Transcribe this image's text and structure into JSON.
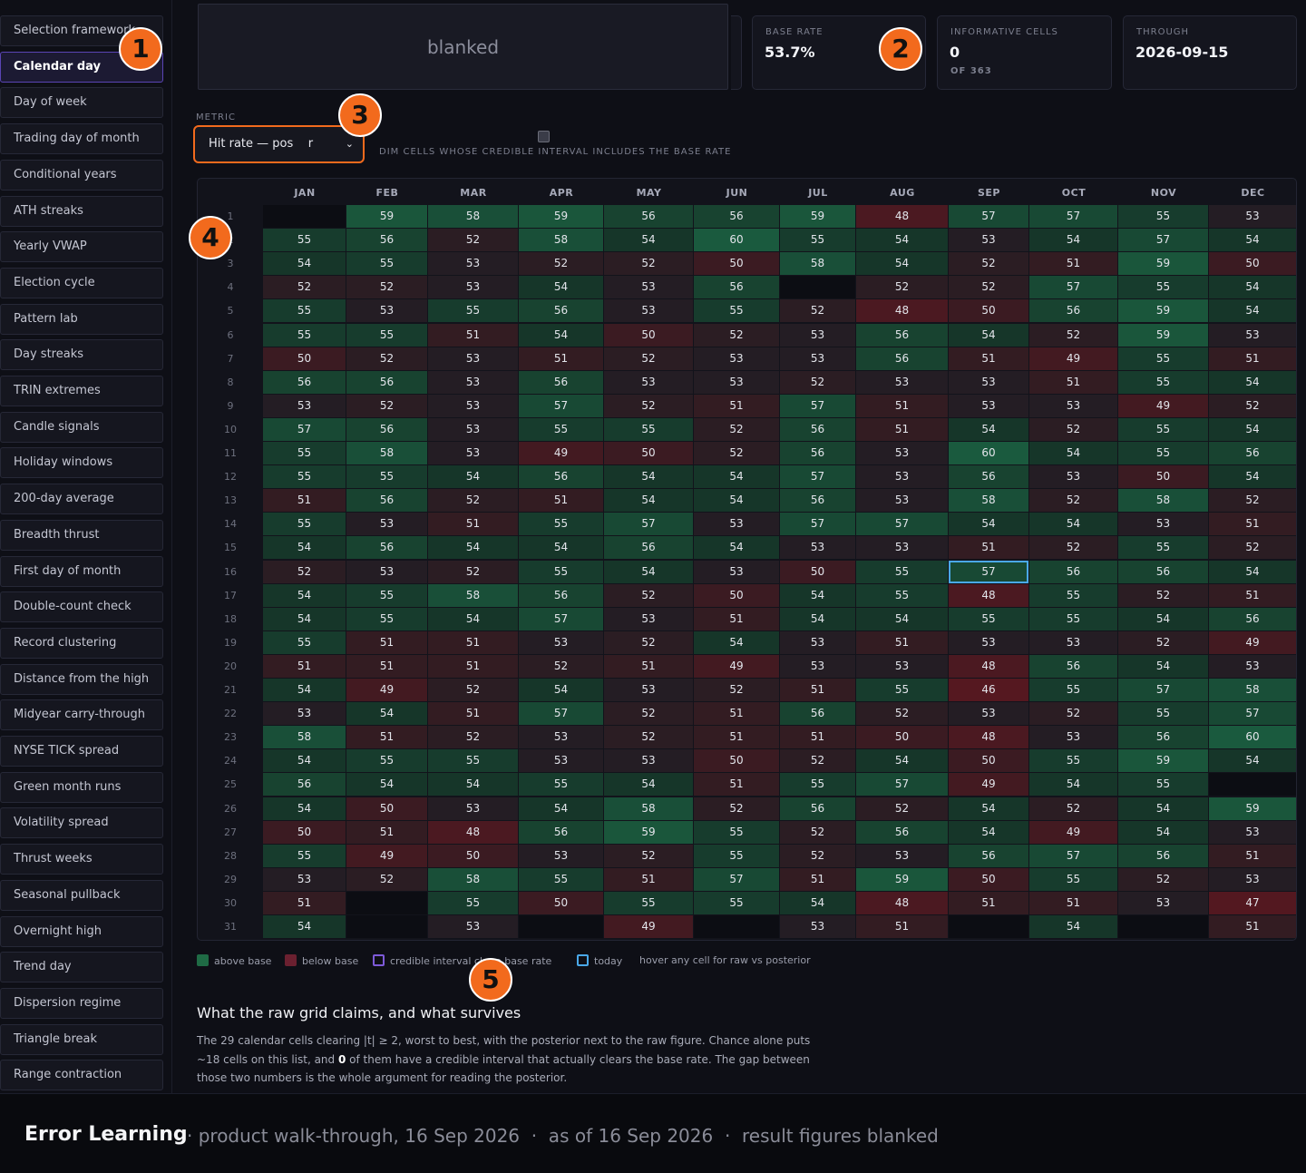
{
  "sidebar": {
    "items": [
      "Selection framework",
      "Calendar day",
      "Day of week",
      "Trading day of month",
      "Conditional years",
      "ATH streaks",
      "Yearly VWAP",
      "Election cycle",
      "Pattern lab",
      "Day streaks",
      "TRIN extremes",
      "Candle signals",
      "Holiday windows",
      "200-day average",
      "Breadth thrust",
      "First day of month",
      "Double-count check",
      "Record clustering",
      "Distance from the high",
      "Midyear carry-through",
      "NYSE TICK spread",
      "Green month runs",
      "Volatility spread",
      "Thrust weeks",
      "Seasonal pullback",
      "Overnight high",
      "Trend day",
      "Dispersion regime",
      "Triangle break",
      "Range contraction"
    ],
    "active_index": 1
  },
  "blank_panel": {
    "text": "blanked"
  },
  "kpis": {
    "base_rate": {
      "label": "BASE RATE",
      "value": "53.7%"
    },
    "informative": {
      "label": "INFORMATIVE CELLS",
      "value": "0",
      "sub": "OF 363"
    },
    "through": {
      "label": "THROUGH",
      "value": "2026-09-15"
    }
  },
  "badges": [
    "1",
    "2",
    "3",
    "4",
    "5"
  ],
  "metric": {
    "label": "METRIC",
    "value": "Hit rate — pos    r",
    "chevron": "⌄"
  },
  "dim_toggle": {
    "label": "DIM CELLS WHOSE CREDIBLE INTERVAL INCLUDES THE BASE RATE",
    "checked": false
  },
  "grid": {
    "months": [
      "JAN",
      "FEB",
      "MAR",
      "APR",
      "MAY",
      "JUN",
      "JUL",
      "AUG",
      "SEP",
      "OCT",
      "NOV",
      "DEC"
    ],
    "today": {
      "row": 15,
      "col": 8
    },
    "base": 53.7,
    "values": [
      [
        null,
        59,
        58,
        59,
        56,
        56,
        59,
        48,
        57,
        57,
        55,
        53
      ],
      [
        55,
        56,
        52,
        58,
        54,
        60,
        55,
        54,
        53,
        54,
        57,
        54
      ],
      [
        54,
        55,
        53,
        52,
        52,
        50,
        58,
        54,
        52,
        51,
        59,
        50
      ],
      [
        52,
        52,
        53,
        54,
        53,
        56,
        null,
        52,
        52,
        57,
        55,
        54
      ],
      [
        55,
        53,
        55,
        56,
        53,
        55,
        52,
        48,
        50,
        56,
        59,
        54
      ],
      [
        55,
        55,
        51,
        54,
        50,
        52,
        53,
        56,
        54,
        52,
        59,
        53
      ],
      [
        50,
        52,
        53,
        51,
        52,
        53,
        53,
        56,
        51,
        49,
        55,
        51
      ],
      [
        56,
        56,
        53,
        56,
        53,
        53,
        52,
        53,
        53,
        51,
        55,
        54
      ],
      [
        53,
        52,
        53,
        57,
        52,
        51,
        57,
        51,
        53,
        53,
        49,
        52
      ],
      [
        57,
        56,
        53,
        55,
        55,
        52,
        56,
        51,
        54,
        52,
        55,
        54
      ],
      [
        55,
        58,
        53,
        49,
        50,
        52,
        56,
        53,
        60,
        54,
        55,
        56
      ],
      [
        55,
        55,
        54,
        56,
        54,
        54,
        57,
        53,
        56,
        53,
        50,
        54
      ],
      [
        51,
        56,
        52,
        51,
        54,
        54,
        56,
        53,
        58,
        52,
        58,
        52
      ],
      [
        55,
        53,
        51,
        55,
        57,
        53,
        57,
        57,
        54,
        54,
        53,
        51
      ],
      [
        54,
        56,
        54,
        54,
        56,
        54,
        53,
        53,
        51,
        52,
        55,
        52
      ],
      [
        52,
        53,
        52,
        55,
        54,
        53,
        50,
        55,
        57,
        56,
        56,
        54
      ],
      [
        54,
        55,
        58,
        56,
        52,
        50,
        54,
        55,
        48,
        55,
        52,
        51
      ],
      [
        54,
        55,
        54,
        57,
        53,
        51,
        54,
        54,
        55,
        55,
        54,
        56
      ],
      [
        55,
        51,
        51,
        53,
        52,
        54,
        53,
        51,
        53,
        53,
        52,
        49
      ],
      [
        51,
        51,
        51,
        52,
        51,
        49,
        53,
        53,
        48,
        56,
        54,
        53
      ],
      [
        54,
        49,
        52,
        54,
        53,
        52,
        51,
        55,
        46,
        55,
        57,
        58
      ],
      [
        53,
        54,
        51,
        57,
        52,
        51,
        56,
        52,
        53,
        52,
        55,
        57
      ],
      [
        58,
        51,
        52,
        53,
        52,
        51,
        51,
        50,
        48,
        53,
        56,
        60
      ],
      [
        54,
        55,
        55,
        53,
        53,
        50,
        52,
        54,
        50,
        55,
        59,
        54
      ],
      [
        56,
        54,
        54,
        55,
        54,
        51,
        55,
        57,
        49,
        54,
        55,
        null
      ],
      [
        54,
        50,
        53,
        54,
        58,
        52,
        56,
        52,
        54,
        52,
        54,
        59
      ],
      [
        50,
        51,
        48,
        56,
        59,
        55,
        52,
        56,
        54,
        49,
        54,
        53
      ],
      [
        55,
        49,
        50,
        53,
        52,
        55,
        52,
        53,
        56,
        57,
        56,
        51
      ],
      [
        53,
        52,
        58,
        55,
        51,
        57,
        51,
        59,
        50,
        55,
        52,
        53
      ],
      [
        51,
        null,
        55,
        50,
        55,
        55,
        54,
        48,
        51,
        51,
        53,
        47
      ],
      [
        54,
        null,
        53,
        null,
        49,
        null,
        53,
        51,
        null,
        54,
        null,
        51
      ]
    ]
  },
  "legend": {
    "above": "above base",
    "below": "below base",
    "ci": "credible interval cl    e base rate",
    "today": "today",
    "hover": "hover any cell for raw vs posterior",
    "colors": {
      "above": "#1f6b45",
      "below": "#6b2030",
      "ci": "#7d5ad8",
      "today": "#4aa8e8"
    }
  },
  "section": {
    "title": "What the raw grid claims, and what survives",
    "p1": "The 29 calendar cells clearing |t| ≥ 2, worst to best, with the posterior next to the raw figure. Chance alone puts ~18 cells on this list, and ",
    "p_bold": "0",
    "p2": " of them have a credible interval that actually clears the base rate. The gap between those two numbers is the whole argument for reading the posterior."
  },
  "footer": {
    "brand": "Error Learning",
    "text": "· product walk-through, 16 Sep 2026  ·  as of 16 Sep 2026  ·  result figures blanked"
  }
}
